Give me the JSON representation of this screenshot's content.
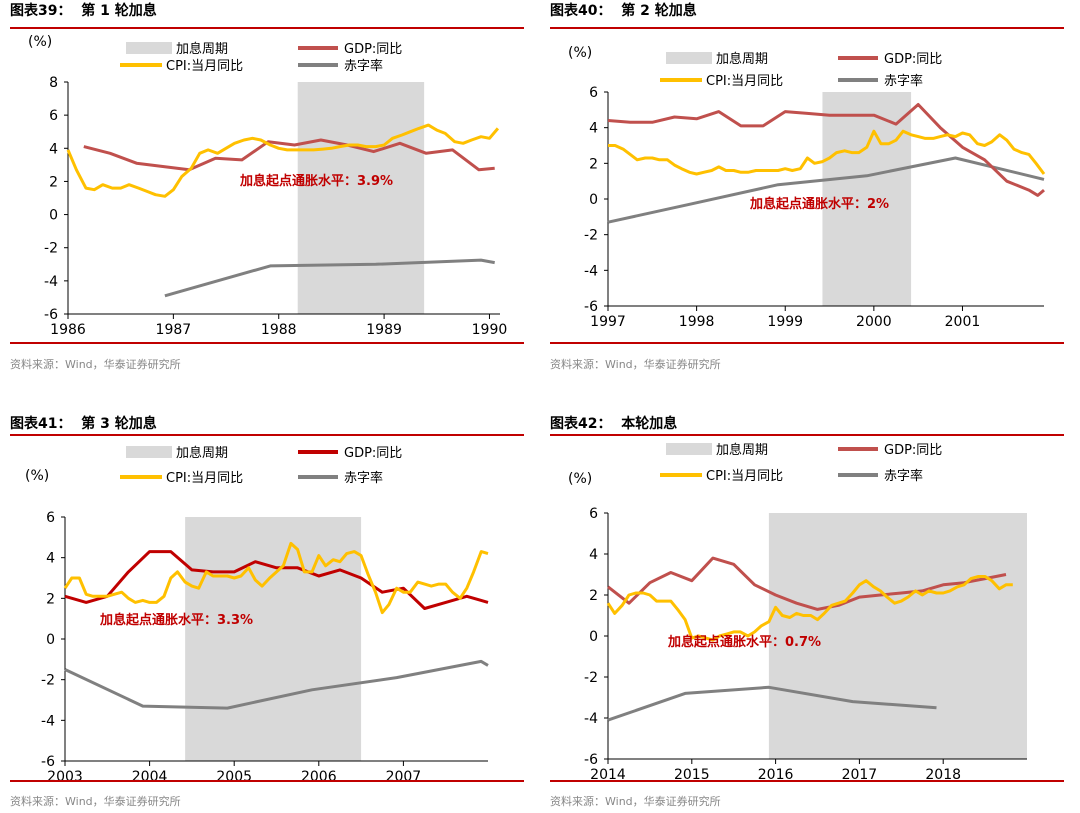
{
  "colors": {
    "shade": "#d9d9d9",
    "gdp_a": "#c0504d",
    "gdp_b": "#c00000",
    "cpi": "#ffc000",
    "deficit": "#808080",
    "annot": "#c00000",
    "rule": "#c00000"
  },
  "legend": {
    "shade": "加息周期",
    "gdp": "GDP:同比",
    "cpi": "CPI:当月同比",
    "deficit": "赤字率"
  },
  "unit": "(%)",
  "source": "资料来源：Wind，华泰证券研究所",
  "charts": [
    {
      "title": "图表39：  第 1 轮加息",
      "annotation": "加息起点通胀水平：3.9%",
      "chart_data": {
        "type": "line",
        "ylim": [
          -6,
          8
        ],
        "yticks": [
          -6,
          -4,
          -2,
          0,
          2,
          4,
          6,
          8
        ],
        "xlim": [
          1986,
          1990.1
        ],
        "xticks": [
          1986,
          1987,
          1988,
          1989,
          1990
        ],
        "shade": [
          1988.18,
          1989.38
        ],
        "series": [
          {
            "name": "GDP:同比",
            "x": [
              1986.15,
              1986.4,
              1986.65,
              1986.9,
              1987.15,
              1987.4,
              1987.65,
              1987.9,
              1988.15,
              1988.4,
              1988.65,
              1988.9,
              1989.15,
              1989.4,
              1989.65,
              1989.9,
              1990.05
            ],
            "y": [
              4.1,
              3.7,
              3.1,
              2.9,
              2.7,
              3.4,
              3.3,
              4.4,
              4.2,
              4.5,
              4.2,
              3.8,
              4.3,
              3.7,
              3.9,
              2.7,
              2.8
            ]
          },
          {
            "name": "CPI:当月同比",
            "x": [
              1986.0,
              1986.08,
              1986.17,
              1986.25,
              1986.33,
              1986.42,
              1986.5,
              1986.58,
              1986.67,
              1986.75,
              1986.83,
              1986.92,
              1987.0,
              1987.08,
              1987.17,
              1987.25,
              1987.33,
              1987.42,
              1987.5,
              1987.58,
              1987.67,
              1987.75,
              1987.83,
              1987.92,
              1988.0,
              1988.08,
              1988.17,
              1988.25,
              1988.33,
              1988.42,
              1988.5,
              1988.58,
              1988.67,
              1988.75,
              1988.83,
              1988.92,
              1989.0,
              1989.08,
              1989.17,
              1989.25,
              1989.33,
              1989.42,
              1989.5,
              1989.58,
              1989.67,
              1989.75,
              1989.83,
              1989.92,
              1990.0,
              1990.08
            ],
            "y": [
              3.9,
              2.7,
              1.6,
              1.5,
              1.8,
              1.6,
              1.6,
              1.8,
              1.6,
              1.4,
              1.2,
              1.1,
              1.5,
              2.3,
              2.8,
              3.7,
              3.9,
              3.7,
              4.0,
              4.3,
              4.5,
              4.6,
              4.5,
              4.2,
              4.0,
              3.9,
              3.9,
              3.9,
              3.9,
              3.95,
              4.0,
              4.1,
              4.2,
              4.2,
              4.1,
              4.1,
              4.2,
              4.6,
              4.8,
              5.0,
              5.2,
              5.4,
              5.1,
              4.9,
              4.4,
              4.3,
              4.5,
              4.7,
              4.6,
              5.2
            ]
          },
          {
            "name": "赤字率",
            "x": [
              1986.92,
              1987.92,
              1988.92,
              1989.92,
              1990.05
            ],
            "y": [
              -4.9,
              -3.1,
              -3.0,
              -2.75,
              -2.9
            ]
          }
        ]
      }
    },
    {
      "title": "图表40：  第 2 轮加息",
      "annotation": "加息起点通胀水平：2%",
      "chart_data": {
        "type": "line",
        "ylim": [
          -6,
          6
        ],
        "yticks": [
          -6,
          -4,
          -2,
          0,
          2,
          4,
          6
        ],
        "xlim": [
          1997,
          2001.92
        ],
        "xticks": [
          1997,
          1998,
          1999,
          2000,
          2001
        ],
        "shade": [
          1999.42,
          2000.42
        ],
        "series": [
          {
            "name": "GDP:同比",
            "x": [
              1997.0,
              1997.25,
              1997.5,
              1997.75,
              1998.0,
              1998.25,
              1998.5,
              1998.75,
              1999.0,
              1999.25,
              1999.5,
              1999.75,
              2000.0,
              2000.25,
              2000.5,
              2000.75,
              2001.0,
              2001.25,
              2001.5,
              2001.75,
              2001.85,
              2001.92
            ],
            "y": [
              4.4,
              4.3,
              4.3,
              4.6,
              4.5,
              4.9,
              4.1,
              4.1,
              4.9,
              4.8,
              4.7,
              4.7,
              4.7,
              4.2,
              5.3,
              4.0,
              2.9,
              2.2,
              1.0,
              0.5,
              0.2,
              0.5
            ]
          },
          {
            "name": "CPI:当月同比",
            "x": [
              1997.0,
              1997.08,
              1997.17,
              1997.25,
              1997.33,
              1997.42,
              1997.5,
              1997.58,
              1997.67,
              1997.75,
              1997.83,
              1997.92,
              1998.0,
              1998.08,
              1998.17,
              1998.25,
              1998.33,
              1998.42,
              1998.5,
              1998.58,
              1998.67,
              1998.75,
              1998.83,
              1998.92,
              1999.0,
              1999.08,
              1999.17,
              1999.25,
              1999.33,
              1999.42,
              1999.5,
              1999.58,
              1999.67,
              1999.75,
              1999.83,
              1999.92,
              2000.0,
              2000.08,
              2000.17,
              2000.25,
              2000.33,
              2000.42,
              2000.5,
              2000.58,
              2000.67,
              2000.75,
              2000.83,
              2000.92,
              2001.0,
              2001.08,
              2001.17,
              2001.25,
              2001.33,
              2001.42,
              2001.5,
              2001.58,
              2001.67,
              2001.75,
              2001.83,
              2001.92
            ],
            "y": [
              3.0,
              3.0,
              2.8,
              2.5,
              2.2,
              2.3,
              2.3,
              2.2,
              2.2,
              1.9,
              1.7,
              1.5,
              1.4,
              1.5,
              1.6,
              1.8,
              1.6,
              1.6,
              1.5,
              1.5,
              1.6,
              1.6,
              1.6,
              1.6,
              1.7,
              1.6,
              1.7,
              2.3,
              2.0,
              2.1,
              2.3,
              2.6,
              2.7,
              2.6,
              2.6,
              2.9,
              3.8,
              3.1,
              3.1,
              3.3,
              3.8,
              3.6,
              3.5,
              3.4,
              3.4,
              3.5,
              3.6,
              3.5,
              3.7,
              3.6,
              3.1,
              3.0,
              3.2,
              3.6,
              3.3,
              2.8,
              2.6,
              2.5,
              2.0,
              1.4
            ]
          },
          {
            "name": "赤字率",
            "x": [
              1997.0,
              1997.92,
              1998.92,
              1999.92,
              2000.92,
              2001.92
            ],
            "y": [
              -1.3,
              -0.3,
              0.8,
              1.3,
              2.3,
              1.1
            ]
          }
        ]
      }
    },
    {
      "title": "图表41：  第 3 轮加息",
      "annotation": "加息起点通胀水平：3.3%",
      "chart_data": {
        "type": "line",
        "ylim": [
          -6,
          6
        ],
        "yticks": [
          -6,
          -4,
          -2,
          0,
          2,
          4,
          6
        ],
        "xlim": [
          2003,
          2008.0
        ],
        "xticks": [
          2003,
          2004,
          2005,
          2006,
          2007
        ],
        "shade": [
          2004.42,
          2006.5
        ],
        "series": [
          {
            "name": "GDP:同比",
            "x": [
              2003.0,
              2003.25,
              2003.5,
              2003.75,
              2004.0,
              2004.25,
              2004.5,
              2004.75,
              2005.0,
              2005.25,
              2005.5,
              2005.75,
              2006.0,
              2006.25,
              2006.5,
              2006.75,
              2007.0,
              2007.25,
              2007.5,
              2007.75,
              2007.92,
              2008.0
            ],
            "y": [
              2.1,
              1.8,
              2.1,
              3.3,
              4.3,
              4.3,
              3.4,
              3.3,
              3.3,
              3.8,
              3.5,
              3.5,
              3.1,
              3.4,
              3.0,
              2.3,
              2.5,
              1.5,
              1.8,
              2.1,
              1.9,
              1.8
            ]
          },
          {
            "name": "CPI:当月同比",
            "x": [
              2003.0,
              2003.08,
              2003.17,
              2003.25,
              2003.33,
              2003.42,
              2003.5,
              2003.58,
              2003.67,
              2003.75,
              2003.83,
              2003.92,
              2004.0,
              2004.08,
              2004.17,
              2004.25,
              2004.33,
              2004.42,
              2004.5,
              2004.58,
              2004.67,
              2004.75,
              2004.83,
              2004.92,
              2005.0,
              2005.08,
              2005.17,
              2005.25,
              2005.33,
              2005.42,
              2005.5,
              2005.58,
              2005.67,
              2005.75,
              2005.83,
              2005.92,
              2006.0,
              2006.08,
              2006.17,
              2006.25,
              2006.33,
              2006.42,
              2006.5,
              2006.58,
              2006.67,
              2006.75,
              2006.83,
              2006.92,
              2007.0,
              2007.08,
              2007.17,
              2007.25,
              2007.33,
              2007.42,
              2007.5,
              2007.58,
              2007.67,
              2007.75,
              2007.83,
              2007.92,
              2008.0
            ],
            "y": [
              2.5,
              3.0,
              3.0,
              2.2,
              2.1,
              2.1,
              2.1,
              2.2,
              2.3,
              2.0,
              1.8,
              1.9,
              1.8,
              1.8,
              2.1,
              3.0,
              3.3,
              2.8,
              2.6,
              2.5,
              3.3,
              3.1,
              3.1,
              3.1,
              3.0,
              3.1,
              3.5,
              2.9,
              2.6,
              3.0,
              3.3,
              3.6,
              4.7,
              4.4,
              3.3,
              3.3,
              4.1,
              3.6,
              3.9,
              3.8,
              4.2,
              4.3,
              4.1,
              3.2,
              2.3,
              1.3,
              1.7,
              2.5,
              2.3,
              2.3,
              2.8,
              2.7,
              2.6,
              2.7,
              2.7,
              2.3,
              2.0,
              2.5,
              3.3,
              4.3,
              4.2
            ]
          },
          {
            "name": "赤字率",
            "x": [
              2003.0,
              2003.92,
              2004.92,
              2005.92,
              2006.92,
              2007.92,
              2008.0
            ],
            "y": [
              -1.5,
              -3.3,
              -3.4,
              -2.5,
              -1.9,
              -1.1,
              -1.3
            ]
          }
        ]
      }
    },
    {
      "title": "图表42：  本轮加息",
      "annotation": "加息起点通胀水平：0.7%",
      "chart_data": {
        "type": "line",
        "ylim": [
          -6,
          6
        ],
        "yticks": [
          -6,
          -4,
          -2,
          0,
          2,
          4,
          6
        ],
        "xlim": [
          2014,
          2019.0
        ],
        "xticks": [
          2014,
          2015,
          2016,
          2017,
          2018
        ],
        "shade": [
          2015.92,
          2019.0
        ],
        "series": [
          {
            "name": "GDP:同比",
            "x": [
              2014.0,
              2014.25,
              2014.5,
              2014.75,
              2015.0,
              2015.25,
              2015.5,
              2015.75,
              2016.0,
              2016.25,
              2016.5,
              2016.75,
              2017.0,
              2017.25,
              2017.5,
              2017.75,
              2018.0,
              2018.25,
              2018.5,
              2018.75
            ],
            "y": [
              2.4,
              1.6,
              2.6,
              3.1,
              2.7,
              3.8,
              3.5,
              2.5,
              2.0,
              1.6,
              1.3,
              1.5,
              1.9,
              2.0,
              2.1,
              2.2,
              2.5,
              2.6,
              2.8,
              3.0
            ]
          },
          {
            "name": "CPI:当月同比",
            "x": [
              2014.0,
              2014.08,
              2014.17,
              2014.25,
              2014.33,
              2014.42,
              2014.5,
              2014.58,
              2014.67,
              2014.75,
              2014.83,
              2014.92,
              2015.0,
              2015.08,
              2015.17,
              2015.25,
              2015.33,
              2015.42,
              2015.5,
              2015.58,
              2015.67,
              2015.75,
              2015.83,
              2015.92,
              2016.0,
              2016.08,
              2016.17,
              2016.25,
              2016.33,
              2016.42,
              2016.5,
              2016.58,
              2016.67,
              2016.75,
              2016.83,
              2016.92,
              2017.0,
              2017.08,
              2017.17,
              2017.25,
              2017.33,
              2017.42,
              2017.5,
              2017.58,
              2017.67,
              2017.75,
              2017.83,
              2017.92,
              2018.0,
              2018.08,
              2018.17,
              2018.25,
              2018.33,
              2018.42,
              2018.5,
              2018.58,
              2018.67,
              2018.75,
              2018.83
            ],
            "y": [
              1.6,
              1.1,
              1.5,
              2.0,
              2.1,
              2.1,
              2.0,
              1.7,
              1.7,
              1.7,
              1.3,
              0.8,
              -0.1,
              0.0,
              -0.1,
              -0.2,
              0.0,
              0.1,
              0.2,
              0.2,
              0.0,
              0.2,
              0.5,
              0.7,
              1.4,
              1.0,
              0.9,
              1.1,
              1.0,
              1.0,
              0.8,
              1.1,
              1.5,
              1.6,
              1.7,
              2.1,
              2.5,
              2.7,
              2.4,
              2.2,
              1.9,
              1.6,
              1.7,
              1.9,
              2.2,
              2.0,
              2.2,
              2.1,
              2.1,
              2.2,
              2.4,
              2.5,
              2.8,
              2.9,
              2.9,
              2.7,
              2.3,
              2.5,
              2.5
            ]
          },
          {
            "name": "赤字率",
            "x": [
              2014.0,
              2014.92,
              2015.92,
              2016.92,
              2017.92
            ],
            "y": [
              -4.1,
              -2.8,
              -2.5,
              -3.2,
              -3.5
            ]
          }
        ]
      }
    }
  ]
}
